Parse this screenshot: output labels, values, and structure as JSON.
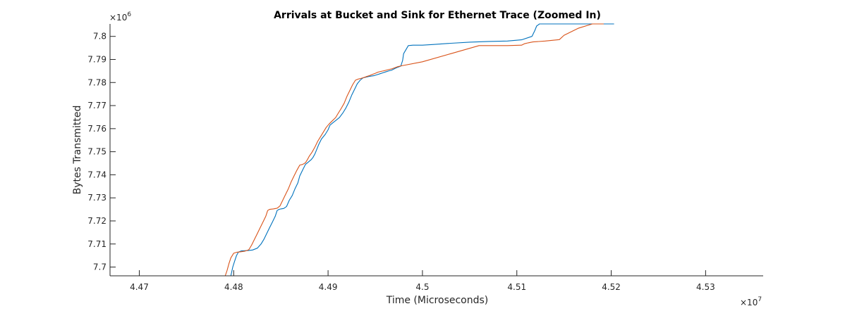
{
  "chart_data": {
    "type": "line",
    "title": "Arrivals at Bucket and Sink for Ethernet Trace (Zoomed In)",
    "xlabel": "Time (Microseconds)",
    "ylabel": "Bytes Transmitted",
    "x_multiplier": "×10^7",
    "y_multiplier": "×10^6",
    "xlim": [
      4.4669,
      4.5361
    ],
    "ylim": [
      7.6962,
      7.8054
    ],
    "xticks": [
      4.47,
      4.48,
      4.49,
      4.5,
      4.51,
      4.52,
      4.53
    ],
    "yticks": [
      7.7,
      7.71,
      7.72,
      7.73,
      7.74,
      7.75,
      7.76,
      7.77,
      7.78,
      7.79,
      7.8
    ],
    "grid": false,
    "colors": {
      "blue": "#0072BD",
      "orange": "#D95319"
    },
    "series": [
      {
        "color": "#0072BD",
        "x": [
          4.4797,
          4.4799,
          4.4801,
          4.4803,
          4.4805,
          4.4808,
          4.4812,
          4.4816,
          4.482,
          4.4825,
          4.4829,
          4.4832,
          4.4835,
          4.4838,
          4.4841,
          4.4844,
          4.4846,
          4.4848,
          4.485,
          4.4853,
          4.4856,
          4.4859,
          4.4862,
          4.4865,
          4.4868,
          4.487,
          4.4873,
          4.4876,
          4.4879,
          4.4882,
          4.4884,
          4.4886,
          4.4888,
          4.489,
          4.4893,
          4.4897,
          4.49,
          4.4902,
          4.4905,
          4.4908,
          4.4912,
          4.4916,
          4.4919,
          4.4922,
          4.4925,
          4.4928,
          4.4931,
          4.4934,
          4.4937,
          4.494,
          4.4943,
          4.4946,
          4.4949,
          4.4952,
          4.4955,
          4.4958,
          4.4961,
          4.4964,
          4.4967,
          4.4969,
          4.4971,
          4.4973,
          4.4975,
          4.4977,
          4.4979,
          4.498,
          4.4985,
          4.499,
          4.5,
          4.5012,
          4.503,
          4.505,
          4.507,
          4.509,
          4.5105,
          4.5116,
          4.5119,
          4.5121,
          4.5124,
          4.5127,
          4.5129,
          4.514,
          4.5155,
          4.516,
          4.5175,
          4.519,
          4.5195,
          4.5198,
          4.52,
          4.5203
        ],
        "y": [
          7.6962,
          7.7,
          7.7025,
          7.705,
          7.7065,
          7.707,
          7.7071,
          7.7072,
          7.7074,
          7.7082,
          7.71,
          7.712,
          7.7145,
          7.717,
          7.7195,
          7.722,
          7.7245,
          7.725,
          7.7252,
          7.7254,
          7.7262,
          7.729,
          7.731,
          7.734,
          7.7365,
          7.7395,
          7.742,
          7.7445,
          7.7455,
          7.7465,
          7.7475,
          7.749,
          7.751,
          7.753,
          7.7555,
          7.7575,
          7.7595,
          7.7615,
          7.7625,
          7.7635,
          7.7648,
          7.767,
          7.769,
          7.7715,
          7.7745,
          7.777,
          7.7795,
          7.781,
          7.782,
          7.7823,
          7.7826,
          7.7828,
          7.783,
          7.7834,
          7.7838,
          7.7842,
          7.7846,
          7.785,
          7.7853,
          7.7857,
          7.7861,
          7.7865,
          7.7868,
          7.7871,
          7.7895,
          7.7925,
          7.796,
          7.7962,
          7.7962,
          7.7965,
          7.797,
          7.7975,
          7.7978,
          7.798,
          7.7985,
          7.8,
          7.8025,
          7.8045,
          7.8054,
          7.8054,
          7.8054,
          7.8054,
          7.8054,
          7.8054,
          7.8054,
          7.8054,
          7.8054,
          7.8054,
          7.8054,
          7.8054
        ]
      },
      {
        "color": "#D95319",
        "x": [
          4.4791,
          4.4793,
          4.4795,
          4.4797,
          4.48,
          4.4803,
          4.4807,
          4.4812,
          4.4816,
          4.4819,
          4.4822,
          4.4825,
          4.4828,
          4.4831,
          4.4834,
          4.4836,
          4.4838,
          4.4842,
          4.4846,
          4.4849,
          4.4852,
          4.4855,
          4.4858,
          4.4861,
          4.4864,
          4.4867,
          4.487,
          4.4873,
          4.4876,
          4.4878,
          4.488,
          4.4883,
          4.4886,
          4.4889,
          4.4892,
          4.4895,
          4.4898,
          4.4901,
          4.4904,
          4.4908,
          4.4911,
          4.4914,
          4.4917,
          4.492,
          4.4923,
          4.4926,
          4.4929,
          4.4932,
          4.4935,
          4.4938,
          4.4941,
          4.4944,
          4.4947,
          4.495,
          4.4953,
          4.4956,
          4.4959,
          4.4962,
          4.4965,
          4.4968,
          4.497,
          4.4972,
          4.4974,
          4.4976,
          4.5,
          4.503,
          4.506,
          4.509,
          4.5105,
          4.5108,
          4.5112,
          4.5117,
          4.513,
          4.5145,
          4.515,
          4.5165,
          4.518,
          4.5186,
          4.5189,
          4.5192
        ],
        "y": [
          7.6962,
          7.6985,
          7.7015,
          7.704,
          7.706,
          7.7064,
          7.7066,
          7.7069,
          7.7075,
          7.7095,
          7.712,
          7.7145,
          7.717,
          7.7195,
          7.722,
          7.7245,
          7.725,
          7.7252,
          7.7255,
          7.7265,
          7.729,
          7.7315,
          7.734,
          7.737,
          7.7395,
          7.742,
          7.7442,
          7.7445,
          7.7452,
          7.7465,
          7.748,
          7.7498,
          7.752,
          7.7545,
          7.7565,
          7.7585,
          7.7605,
          7.762,
          7.7632,
          7.7648,
          7.7668,
          7.7688,
          7.771,
          7.774,
          7.7765,
          7.779,
          7.781,
          7.7815,
          7.7818,
          7.7822,
          7.7826,
          7.783,
          7.7835,
          7.784,
          7.7845,
          7.7848,
          7.7851,
          7.7854,
          7.7857,
          7.786,
          7.7863,
          7.7866,
          7.7869,
          7.7871,
          7.789,
          7.7925,
          7.796,
          7.796,
          7.7962,
          7.7968,
          7.7972,
          7.7976,
          7.798,
          7.7986,
          7.8005,
          7.8035,
          7.8054,
          7.8054,
          7.8054,
          7.8054
        ]
      }
    ]
  }
}
